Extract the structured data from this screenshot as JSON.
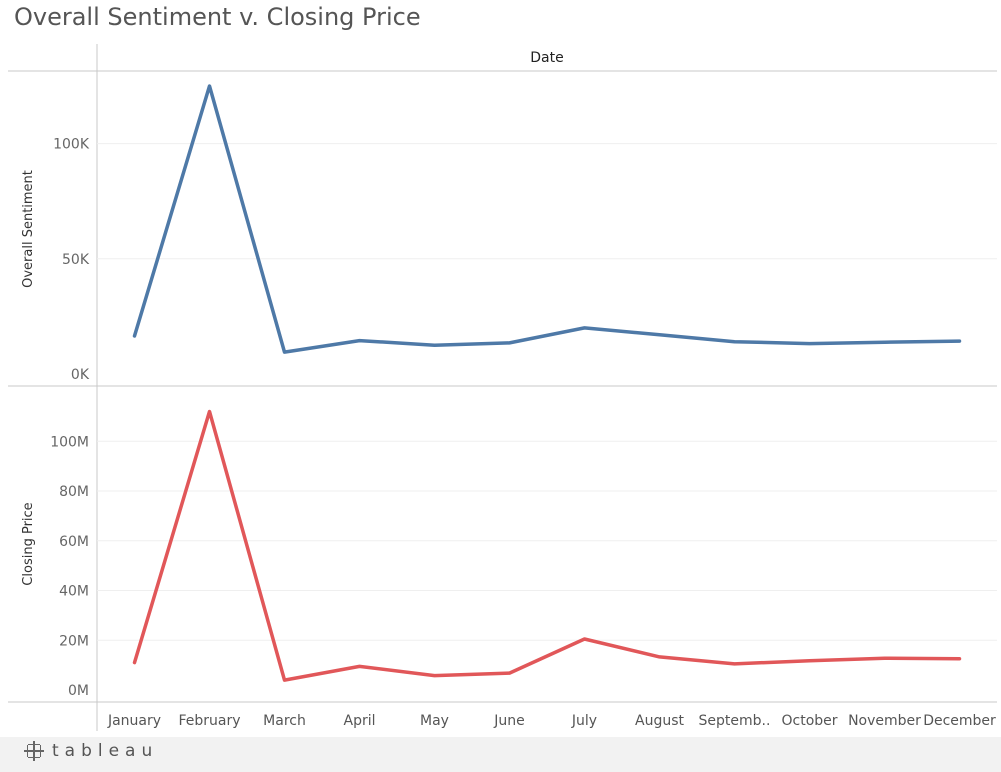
{
  "title": "Overall Sentiment v. Closing Price",
  "footer": {
    "brand": "tableau"
  },
  "colors": {
    "sentiment": "#4e79a7",
    "closing": "#e15759",
    "grid": "#efefef",
    "axis": "#c8c8c8",
    "text": "#555555"
  },
  "chart_data": {
    "type": "line",
    "header": "Date",
    "categories": [
      "January",
      "February",
      "March",
      "April",
      "May",
      "June",
      "July",
      "August",
      "Septemb..",
      "October",
      "November",
      "December"
    ],
    "panels": [
      {
        "ylabel": "Overall Sentiment",
        "ylim": [
          0,
          125000
        ],
        "ticks": [
          0,
          50000,
          100000
        ],
        "tick_labels": [
          "0K",
          "50K",
          "100K"
        ],
        "values": [
          16500,
          125000,
          9500,
          14500,
          12500,
          13500,
          20000,
          17000,
          14000,
          13200,
          13800,
          14300
        ]
      },
      {
        "ylabel": "Closing Price",
        "ylim": [
          0,
          115000000
        ],
        "ticks": [
          0,
          20000000,
          40000000,
          60000000,
          80000000,
          100000000
        ],
        "tick_labels": [
          "0M",
          "20M",
          "40M",
          "60M",
          "80M",
          "100M"
        ],
        "values": [
          11000000,
          112000000,
          4000000,
          9500000,
          5800000,
          6800000,
          20500000,
          13300000,
          10500000,
          11800000,
          12800000,
          12600000
        ]
      }
    ]
  }
}
